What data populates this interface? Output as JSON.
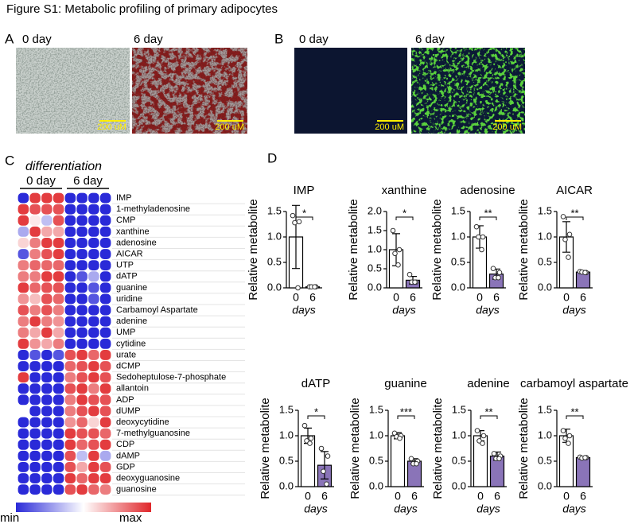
{
  "figure": {
    "title": "Figure S1: Metabolic profiling of primary adipocytes",
    "panel_a": {
      "label": "A",
      "columns": [
        "0 day",
        "6 day"
      ],
      "scale_bars": [
        "200 uM",
        "200 uM"
      ]
    },
    "panel_b": {
      "label": "B",
      "columns": [
        "0 day",
        "6 day"
      ],
      "scale_bars": [
        "200 uM",
        "200 uM"
      ]
    }
  },
  "chart_data": [
    {
      "type": "heatmap",
      "label": "C",
      "title": "differentiation",
      "column_groups": [
        "0 day",
        "6 day"
      ],
      "rows": [
        "IMP",
        "1-methyladenosine",
        "CMP",
        "xanthine",
        "adenosine",
        "AICAR",
        "UTP",
        "dATP",
        "guanine",
        "uridine",
        "Carbamoyl Aspartate",
        "adenine",
        "UMP",
        "cytidine",
        "urate",
        "dCMP",
        "Sedoheptulose-7-phosphate",
        "allantoin",
        "ADP",
        "dUMP",
        "deoxycytidine",
        "7-methylguanosine",
        "CDP",
        "dAMP",
        "GDP",
        "deoxyguanosine",
        "guanosine"
      ],
      "values": [
        [
          0,
          0.95,
          0.95,
          0.95,
          0,
          0,
          0,
          0
        ],
        [
          0.95,
          0.9,
          0.9,
          0.9,
          0,
          0,
          0,
          0
        ],
        [
          0.95,
          0.55,
          0.35,
          0.9,
          0,
          0,
          0,
          0
        ],
        [
          0.3,
          0.95,
          0.7,
          0.7,
          0,
          0,
          0,
          0
        ],
        [
          0.6,
          0.8,
          0.95,
          0.95,
          0,
          0,
          0,
          0
        ],
        [
          0.1,
          0.8,
          0.9,
          0.95,
          0,
          0,
          0,
          0
        ],
        [
          0.8,
          0.85,
          0.85,
          0.85,
          0,
          0,
          0,
          0
        ],
        [
          0.8,
          0.8,
          0.95,
          0.95,
          0,
          0.1,
          0.3,
          0
        ],
        [
          0.95,
          0.85,
          0.9,
          0.9,
          0,
          0,
          0.1,
          0
        ],
        [
          0.75,
          0.65,
          0.9,
          0.85,
          0,
          0,
          0.1,
          0
        ],
        [
          0.9,
          0.8,
          0.9,
          0.8,
          0,
          0,
          0,
          0
        ],
        [
          0.8,
          0.95,
          0.8,
          0.75,
          0,
          0,
          0,
          0
        ],
        [
          0.8,
          0.7,
          0.95,
          0.7,
          0,
          0,
          0,
          0
        ],
        [
          0.95,
          0.75,
          0.7,
          0.8,
          0,
          0,
          0,
          0
        ],
        [
          0,
          0.1,
          0,
          0.1,
          0.9,
          0.95,
          0.85,
          0.95
        ],
        [
          0,
          0,
          0,
          0,
          0.85,
          0.9,
          0.95,
          0.9
        ],
        [
          0.95,
          0,
          0,
          0,
          0.8,
          0.9,
          0.95,
          0.9
        ],
        [
          0,
          0,
          0,
          0,
          0.9,
          0.95,
          0.8,
          0.95
        ],
        [
          0,
          0,
          0,
          0,
          0.8,
          0.95,
          0.9,
          0.9
        ],
        [
          0.5,
          0,
          0,
          0,
          0.8,
          0.9,
          0.95,
          0.9
        ],
        [
          0,
          0,
          0,
          0,
          0.75,
          0.85,
          0.6,
          0.95
        ],
        [
          0,
          0,
          0,
          0,
          0.95,
          0.9,
          0.9,
          0.85
        ],
        [
          0,
          0,
          0,
          0,
          0.95,
          0.85,
          0.9,
          0.95
        ],
        [
          0,
          0,
          0,
          0,
          0.9,
          0.35,
          0.95,
          0.3
        ],
        [
          0,
          0,
          0,
          0,
          0.9,
          0.7,
          0.95,
          0.9
        ],
        [
          0,
          0,
          0,
          0,
          0.95,
          0.85,
          0.95,
          0.95
        ],
        [
          0,
          0,
          0,
          0,
          0.9,
          0.95,
          0.85,
          0.8
        ]
      ],
      "colors": [
        "#2a2ad8",
        "#ffffff",
        "#e0262a"
      ],
      "colorbar_labels": [
        "min",
        "max"
      ]
    },
    {
      "type": "bar",
      "label": "D",
      "title": "IMP",
      "ylabel": "Relative metabolite",
      "xlabel": "days",
      "categories": [
        "0",
        "6"
      ],
      "values": [
        1.0,
        0.02
      ],
      "errors": [
        0.62,
        0.02
      ],
      "points": [
        [
          1.42,
          1.3,
          1.28,
          0.0
        ],
        [
          0.02,
          0.02,
          0.02,
          0.02
        ]
      ],
      "colors": [
        "#ffffff",
        "#8a74b8"
      ],
      "ylim": [
        0,
        1.5
      ],
      "yticks": [
        {
          "value": 0,
          "label": "0.0"
        },
        0.5,
        {
          "value": 1,
          "label": "1.0"
        },
        1.5
      ],
      "significance": "*"
    },
    {
      "type": "bar",
      "title": "xanthine",
      "ylabel": "Relative metabolite",
      "xlabel": "days",
      "categories": [
        "0",
        "6"
      ],
      "values": [
        1.0,
        0.2
      ],
      "errors": [
        0.42,
        0.1
      ],
      "points": [
        [
          1.5,
          1.0,
          0.9,
          0.6
        ],
        [
          0.35,
          0.15,
          0.15,
          0.15
        ]
      ],
      "colors": [
        "#ffffff",
        "#8a74b8"
      ],
      "ylim": [
        0,
        2
      ],
      "yticks": [
        {
          "value": 0,
          "label": "0.0"
        },
        0.5,
        {
          "value": 1,
          "label": "1.0"
        },
        1.5,
        {
          "value": 2,
          "label": "2.0"
        }
      ],
      "significance": "*"
    },
    {
      "type": "bar",
      "title": "adenosine",
      "ylabel": "Relative metabolite",
      "xlabel": "days",
      "categories": [
        "0",
        "6"
      ],
      "values": [
        1.0,
        0.27
      ],
      "errors": [
        0.22,
        0.1
      ],
      "points": [
        [
          1.2,
          1.0,
          1.0,
          0.75
        ],
        [
          0.38,
          0.3,
          0.2,
          0.2
        ]
      ],
      "colors": [
        "#ffffff",
        "#8a74b8"
      ],
      "ylim": [
        0,
        1.5
      ],
      "yticks": [
        {
          "value": 0,
          "label": "0.0"
        },
        0.5,
        {
          "value": 1,
          "label": "1.0"
        },
        1.5
      ],
      "significance": "**"
    },
    {
      "type": "bar",
      "title": "AICAR",
      "ylabel": "Relative metabolite",
      "xlabel": "days",
      "categories": [
        "0",
        "6"
      ],
      "values": [
        1.0,
        0.31
      ],
      "errors": [
        0.3,
        0.03
      ],
      "points": [
        [
          1.4,
          1.05,
          0.95,
          0.6
        ],
        [
          0.32,
          0.3,
          0.31,
          0.3
        ]
      ],
      "colors": [
        "#ffffff",
        "#8a74b8"
      ],
      "ylim": [
        0,
        1.5
      ],
      "yticks": [
        {
          "value": 0,
          "label": "0.0"
        },
        0.5,
        {
          "value": 1,
          "label": "1.0"
        },
        1.5
      ],
      "significance": "**"
    },
    {
      "type": "bar",
      "title": "dATP",
      "ylabel": "Relative metabolite",
      "xlabel": "days",
      "categories": [
        "0",
        "6"
      ],
      "values": [
        1.0,
        0.42
      ],
      "errors": [
        0.15,
        0.27
      ],
      "points": [
        [
          1.2,
          0.95,
          0.9,
          0.85
        ],
        [
          0.75,
          0.6,
          0.3,
          0.05
        ]
      ],
      "colors": [
        "#ffffff",
        "#8a74b8"
      ],
      "ylim": [
        0,
        1.5
      ],
      "yticks": [
        {
          "value": 0,
          "label": "0.0"
        },
        0.5,
        {
          "value": 1,
          "label": "1.0"
        },
        1.5
      ],
      "significance": "*"
    },
    {
      "type": "bar",
      "title": "guanine",
      "ylabel": "Relative metabolite",
      "xlabel": "days",
      "categories": [
        "0",
        "6"
      ],
      "values": [
        1.0,
        0.5
      ],
      "errors": [
        0.06,
        0.05
      ],
      "points": [
        [
          1.05,
          1.0,
          0.98,
          0.95
        ],
        [
          0.55,
          0.5,
          0.45,
          0.45
        ]
      ],
      "colors": [
        "#ffffff",
        "#8a74b8"
      ],
      "ylim": [
        0,
        1.5
      ],
      "yticks": [
        {
          "value": 0,
          "label": "0.0"
        },
        0.5,
        {
          "value": 1,
          "label": "1.0"
        },
        1.5
      ],
      "significance": "***"
    },
    {
      "type": "bar",
      "title": "adenine",
      "ylabel": "Relative metabolite",
      "xlabel": "days",
      "categories": [
        "0",
        "6"
      ],
      "values": [
        1.0,
        0.6
      ],
      "errors": [
        0.1,
        0.08
      ],
      "points": [
        [
          1.1,
          1.0,
          0.9,
          0.85
        ],
        [
          0.65,
          0.6,
          0.55,
          0.55
        ]
      ],
      "colors": [
        "#ffffff",
        "#8a74b8"
      ],
      "ylim": [
        0,
        1.5
      ],
      "yticks": [
        {
          "value": 0,
          "label": "0.0"
        },
        0.5,
        {
          "value": 1,
          "label": "1.0"
        },
        1.5
      ],
      "significance": "**"
    },
    {
      "type": "bar",
      "title": "carbamoyl aspartate",
      "ylabel": "Relative metabolite",
      "xlabel": "days",
      "categories": [
        "0",
        "6"
      ],
      "values": [
        1.0,
        0.57
      ],
      "errors": [
        0.13,
        0.02
      ],
      "points": [
        [
          1.1,
          1.0,
          0.95,
          0.85
        ],
        [
          0.58,
          0.57,
          0.56,
          0.57
        ]
      ],
      "colors": [
        "#ffffff",
        "#8a74b8"
      ],
      "ylim": [
        0,
        1.5
      ],
      "yticks": [
        {
          "value": 0,
          "label": "0.0"
        },
        0.5,
        {
          "value": 1,
          "label": "1.0"
        },
        1.5
      ],
      "significance": "**"
    }
  ]
}
